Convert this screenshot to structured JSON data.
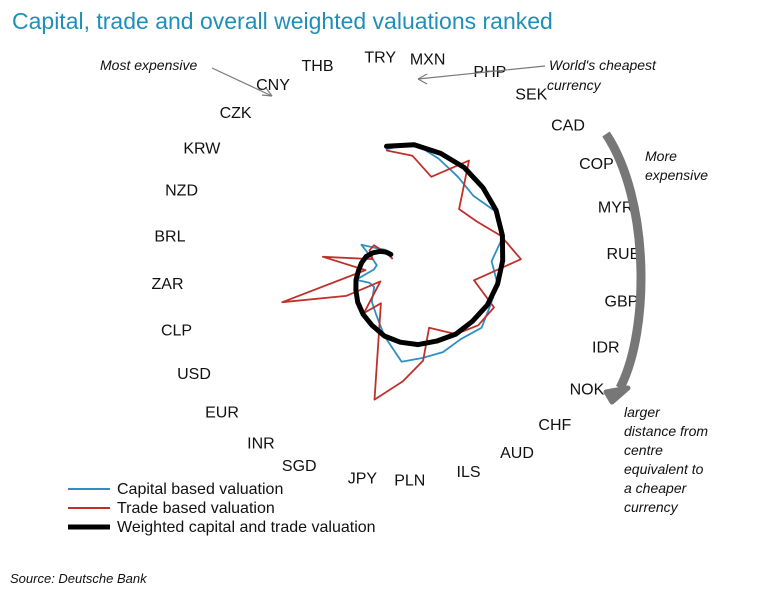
{
  "chart_data": {
    "type": "line",
    "title": "Capital, trade and overall weighted valuations ranked",
    "categories": [
      "TRY",
      "MXN",
      "PHP",
      "SEK",
      "CAD",
      "COP",
      "MYR",
      "RUB",
      "GBP",
      "IDR",
      "NOK",
      "CHF",
      "AUD",
      "ILS",
      "PLN",
      "JPY",
      "SGD",
      "INR",
      "EUR",
      "USD",
      "CLP",
      "ZAR",
      "BRL",
      "NZD",
      "KRW",
      "CZK",
      "CNY",
      "THB"
    ],
    "series": [
      {
        "name": "Capital based valuation",
        "color": "#2e8fc4",
        "values": [
          0.78,
          0.83,
          0.77,
          0.72,
          0.69,
          0.75,
          0.74,
          0.62,
          0.67,
          0.66,
          0.68,
          0.62,
          0.62,
          0.6,
          0.6,
          0.42,
          0.29,
          0.22,
          0.13,
          0.14,
          0.22,
          0.08,
          0.06,
          0.1,
          0.22,
          0.12,
          0.08,
          0.0
        ]
      },
      {
        "name": "Trade based valuation",
        "color": "#c0302b",
        "values": [
          0.77,
          0.74,
          0.63,
          0.86,
          0.55,
          0.6,
          0.72,
          0.83,
          0.5,
          0.69,
          0.65,
          0.57,
          0.42,
          0.62,
          0.74,
          0.88,
          0.2,
          0.32,
          0.07,
          0.33,
          0.77,
          0.14,
          0.45,
          0.1,
          0.15,
          0.15,
          0.05,
          0.0
        ]
      },
      {
        "name": "Weighted capital and trade valuation",
        "color": "#000000",
        "values": [
          0.8,
          0.82,
          0.81,
          0.8,
          0.78,
          0.76,
          0.73,
          0.7,
          0.67,
          0.64,
          0.6,
          0.57,
          0.53,
          0.5,
          0.46,
          0.42,
          0.37,
          0.33,
          0.29,
          0.25,
          0.22,
          0.19,
          0.17,
          0.15,
          0.12,
          0.09,
          0.06,
          0.03
        ]
      }
    ],
    "legend_position": "bottom-left",
    "grid": false
  },
  "annotations": {
    "most_expensive": "Most expensive",
    "cheapest_line1": "World's cheapest",
    "cheapest_line2": "currency",
    "more_expensive_line1": "More",
    "more_expensive_line2": "expensive",
    "distance_lines": [
      "larger",
      "distance  from",
      "centre",
      "equivalent to",
      "a cheaper",
      "currency"
    ]
  },
  "source": "Source: Deutsche Bank",
  "colors": {
    "title": "#1f8fb8",
    "arrow": "#7a7a7a"
  }
}
